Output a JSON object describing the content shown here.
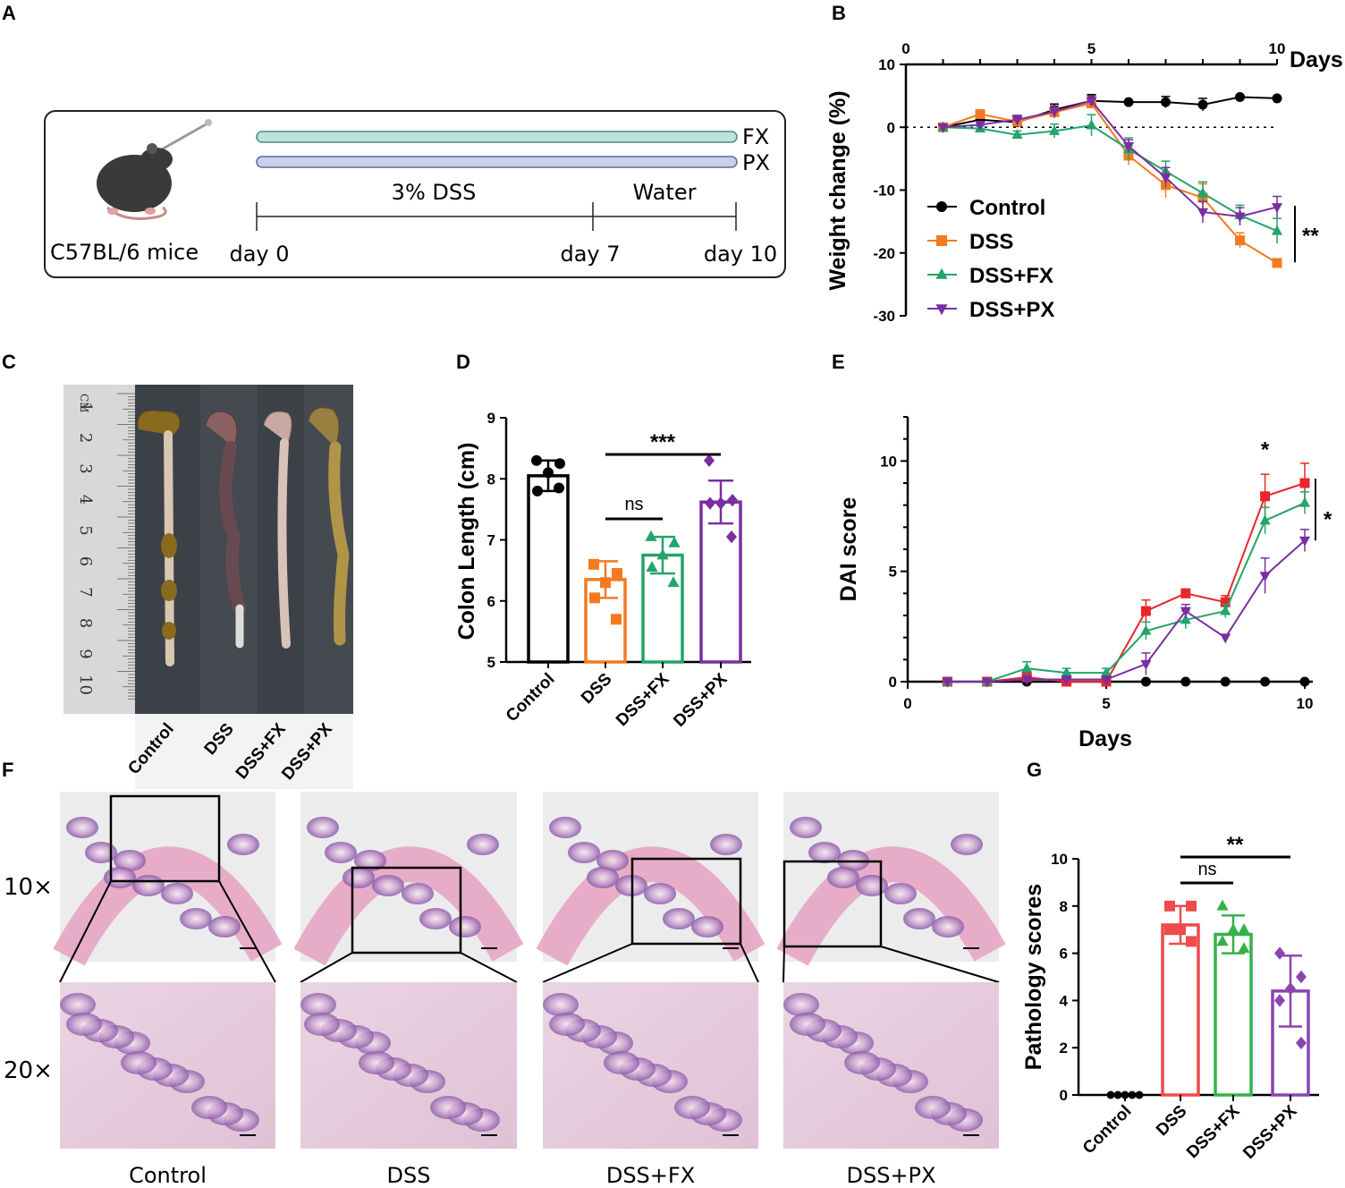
{
  "panel_labels": {
    "a": "A",
    "b": "B",
    "c": "C",
    "d": "D",
    "e": "E",
    "f": "F",
    "g": "G"
  },
  "colors": {
    "control": "#000000",
    "dss": "#f47a20",
    "fx": "#22a46a",
    "px": "#7b2ea0",
    "e_dss": "#e8262b",
    "g_dss": "#ee4b4b",
    "g_fx": "#33b24a",
    "g_px": "#8a45b0",
    "fx_bar": "#bfe3dc",
    "px_bar": "#c9cfe8"
  },
  "schematic": {
    "mouse_label": "C57BL/6 mice",
    "bar1_label": "FX",
    "bar2_label": "PX",
    "phase1": "3% DSS",
    "phase2": "Water",
    "t0": "day 0",
    "t1": "day 7",
    "t2": "day 10"
  },
  "photo": {
    "ruler_marks": [
      "1",
      "2",
      "3",
      "4",
      "5",
      "6",
      "7",
      "8",
      "9",
      "10"
    ],
    "ruler_unit": "CM",
    "groups": [
      "Control",
      "DSS",
      "DSS+FX",
      "DSS+PX"
    ]
  },
  "histology": {
    "mag_top": "10×",
    "mag_bottom": "20×",
    "groups": [
      "Control",
      "DSS",
      "DSS+FX",
      "DSS+PX"
    ]
  },
  "chart_data": [
    {
      "id": "B",
      "type": "line",
      "title": "",
      "xlabel": "Days",
      "ylabel": "Weight change (%)",
      "xlim": [
        0,
        10
      ],
      "ylim": [
        -30,
        10
      ],
      "xticks": [
        "0",
        "5",
        "10"
      ],
      "yticks": [
        "10",
        "0",
        "-10",
        "-20",
        "-30"
      ],
      "x": [
        1,
        2,
        3,
        4,
        5,
        6,
        7,
        8,
        9,
        10
      ],
      "series": [
        {
          "name": "Control",
          "values": [
            0,
            1.2,
            0.8,
            2.8,
            4.2,
            4.0,
            4.0,
            3.6,
            4.8,
            4.6
          ],
          "err": [
            0.4,
            0.6,
            0.8,
            0.9,
            1.0,
            0.3,
            0.9,
            1.0,
            0.3,
            0.3
          ]
        },
        {
          "name": "DSS",
          "values": [
            0,
            2.1,
            0.9,
            2.4,
            3.8,
            -4.5,
            -9.2,
            -11.2,
            -18.0,
            -21.6
          ],
          "err": [
            0.3,
            0.5,
            0.8,
            1.0,
            0.7,
            1.5,
            2.0,
            2.2,
            1.2,
            0.6
          ]
        },
        {
          "name": "DSS+FX",
          "values": [
            0,
            -0.2,
            -1.2,
            -0.6,
            0.3,
            -3.5,
            -7.0,
            -10.5,
            -14.0,
            -16.5
          ],
          "err": [
            0.3,
            0.4,
            0.6,
            1.1,
            1.7,
            1.8,
            1.6,
            1.8,
            1.6,
            2.0
          ]
        },
        {
          "name": "DSS+PX",
          "values": [
            0,
            0.4,
            1.2,
            2.5,
            4.2,
            -3.0,
            -8.0,
            -13.5,
            -14.2,
            -12.7
          ],
          "err": [
            0.3,
            0.5,
            0.7,
            0.9,
            0.8,
            1.0,
            1.6,
            1.7,
            1.4,
            1.7
          ]
        }
      ],
      "annotation": "**"
    },
    {
      "id": "D",
      "type": "bar",
      "ylabel": "Colon Length (cm)",
      "ylim": [
        5,
        9
      ],
      "yticks": [
        "5",
        "6",
        "7",
        "8",
        "9"
      ],
      "categories": [
        "Control",
        "DSS",
        "DSS+FX",
        "DSS+PX"
      ],
      "values": [
        8.05,
        6.35,
        6.75,
        7.62
      ],
      "err": [
        0.25,
        0.3,
        0.3,
        0.35
      ],
      "points": [
        [
          8.3,
          8.25,
          8.1,
          7.8,
          7.85
        ],
        [
          6.6,
          6.45,
          6.3,
          6.05,
          5.7
        ],
        [
          7.05,
          6.95,
          6.75,
          6.55,
          6.3
        ],
        [
          8.3,
          7.65,
          7.6,
          7.6,
          7.05
        ]
      ],
      "annotations": {
        "sig1": "***",
        "sig2": "ns"
      }
    },
    {
      "id": "E",
      "type": "line",
      "xlabel": "Days",
      "ylabel": "DAI score",
      "xlim": [
        0,
        10
      ],
      "ylim": [
        0,
        12
      ],
      "xticks": [
        "0",
        "5",
        "10"
      ],
      "yticks": [
        "0",
        "5",
        "10"
      ],
      "x": [
        1,
        2,
        3,
        4,
        5,
        6,
        7,
        8,
        9,
        10
      ],
      "series": [
        {
          "name": "Control",
          "values": [
            0,
            0,
            0,
            0,
            0,
            0,
            0,
            0,
            0,
            0
          ],
          "err": [
            0,
            0,
            0,
            0,
            0,
            0,
            0,
            0,
            0,
            0
          ]
        },
        {
          "name": "DSS",
          "values": [
            0,
            0,
            0.2,
            0,
            0,
            3.2,
            4.0,
            3.6,
            8.4,
            9.0
          ],
          "err": [
            0,
            0,
            0.2,
            0,
            0,
            0.5,
            0.2,
            0.3,
            1.0,
            0.9
          ]
        },
        {
          "name": "DSS+FX",
          "values": [
            0,
            0,
            0.6,
            0.4,
            0.4,
            2.3,
            2.8,
            3.2,
            7.3,
            8.1
          ],
          "err": [
            0,
            0,
            0.3,
            0.2,
            0.2,
            0.4,
            0.4,
            0.3,
            0.6,
            0.5
          ]
        },
        {
          "name": "DSS+PX",
          "values": [
            0,
            0,
            0.1,
            0.1,
            0.1,
            0.8,
            3.2,
            2.0,
            4.8,
            6.4
          ],
          "err": [
            0,
            0,
            0.1,
            0.1,
            0.1,
            0.5,
            0.3,
            0.1,
            0.8,
            0.5
          ]
        }
      ],
      "annotations": {
        "point": "*",
        "bracket": "*"
      }
    },
    {
      "id": "G",
      "type": "bar",
      "ylabel": "Pathology scores",
      "ylim": [
        0,
        10
      ],
      "yticks": [
        "0",
        "2",
        "4",
        "6",
        "8",
        "10"
      ],
      "categories": [
        "Control",
        "DSS",
        "DSS+FX",
        "DSS+PX"
      ],
      "values": [
        0,
        7.2,
        6.8,
        4.4
      ],
      "err": [
        0,
        0.8,
        0.8,
        1.5
      ],
      "points": [
        [
          0,
          0,
          0,
          0,
          0
        ],
        [
          8,
          8,
          7,
          7,
          6.5
        ],
        [
          8,
          7,
          7,
          6.5,
          6.2
        ],
        [
          6,
          5,
          4.5,
          4,
          2.2
        ]
      ],
      "annotations": {
        "sig1": "**",
        "sig2": "ns"
      }
    }
  ]
}
